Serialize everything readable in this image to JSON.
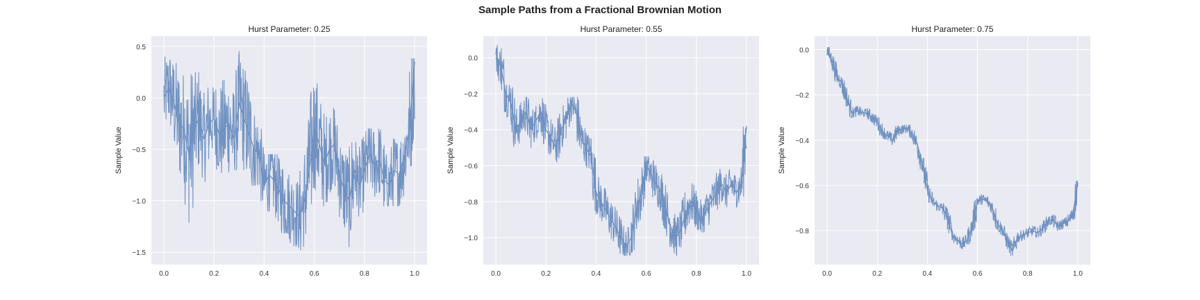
{
  "figure": {
    "suptitle": "Sample Paths from a Fractional Brownian Motion"
  },
  "colors": {
    "line": "#6c8ebf",
    "panel_bg": "#eaeaf2",
    "grid": "#ffffff"
  },
  "chart_data": [
    {
      "type": "line",
      "title": "Hurst Parameter: 0.25",
      "xlabel": "",
      "ylabel": "Sample Value",
      "xlim": [
        -0.05,
        1.05
      ],
      "ylim": [
        -1.62,
        0.6
      ],
      "xticks": [
        0.0,
        0.2,
        0.4,
        0.6,
        0.8,
        1.0
      ],
      "xtick_labels": [
        "0.0",
        "0.2",
        "0.4",
        "0.6",
        "0.8",
        "1.0"
      ],
      "yticks": [
        0.5,
        0.0,
        -0.5,
        -1.0,
        -1.5
      ],
      "ytick_labels": [
        "0.5",
        "0.0",
        "−0.5",
        "−1.0",
        "−1.5"
      ],
      "grid": true,
      "series": [
        {
          "x": [
            0.0,
            0.02,
            0.04,
            0.06,
            0.08,
            0.1,
            0.12,
            0.14,
            0.16,
            0.18,
            0.2,
            0.22,
            0.24,
            0.26,
            0.28,
            0.3,
            0.32,
            0.34,
            0.36,
            0.38,
            0.4,
            0.42,
            0.44,
            0.46,
            0.48,
            0.5,
            0.52,
            0.54,
            0.56,
            0.58,
            0.6,
            0.62,
            0.64,
            0.66,
            0.68,
            0.7,
            0.72,
            0.74,
            0.76,
            0.78,
            0.8,
            0.82,
            0.84,
            0.86,
            0.88,
            0.9,
            0.92,
            0.94,
            0.96,
            0.98,
            1.0
          ],
          "values": [
            0.0,
            0.1,
            -0.05,
            -0.25,
            -0.3,
            -0.55,
            -0.3,
            -0.2,
            -0.4,
            -0.25,
            -0.2,
            -0.35,
            -0.3,
            -0.25,
            -0.4,
            -0.05,
            -0.2,
            -0.35,
            -0.5,
            -0.55,
            -0.85,
            -0.75,
            -0.8,
            -0.9,
            -1.0,
            -1.05,
            -1.1,
            -1.15,
            -1.0,
            -0.7,
            -0.3,
            -0.45,
            -0.65,
            -0.5,
            -0.45,
            -0.75,
            -0.9,
            -1.0,
            -0.7,
            -0.85,
            -0.7,
            -0.55,
            -0.65,
            -0.6,
            -0.8,
            -0.85,
            -0.7,
            -0.75,
            -0.55,
            -0.3,
            0.35
          ],
          "min": [
            -0.1,
            -0.3,
            -0.4,
            -0.6,
            -0.75,
            -1.25,
            -0.8,
            -0.7,
            -0.85,
            -0.65,
            -0.55,
            -0.75,
            -0.8,
            -0.75,
            -0.7,
            -0.55,
            -0.7,
            -0.75,
            -0.85,
            -0.85,
            -1.1,
            -1.3,
            -1.3,
            -1.25,
            -1.4,
            -1.45,
            -1.5,
            -1.5,
            -1.4,
            -1.2,
            -0.65,
            -1.0,
            -1.05,
            -0.95,
            -1.0,
            -1.1,
            -1.3,
            -1.5,
            -1.1,
            -1.15,
            -1.0,
            -1.05,
            -1.0,
            -1.0,
            -1.05,
            -1.05,
            -1.0,
            -1.05,
            -0.95,
            -0.95,
            -0.1
          ],
          "max": [
            0.5,
            0.45,
            0.3,
            0.45,
            0.2,
            0.05,
            0.3,
            0.1,
            -0.05,
            0.1,
            0.1,
            0.15,
            0.25,
            0.25,
            0.1,
            0.45,
            0.4,
            0.25,
            0.0,
            -0.3,
            -0.55,
            -0.6,
            -0.55,
            -0.6,
            -0.7,
            -0.8,
            -0.75,
            -0.75,
            -0.55,
            -0.2,
            0.2,
            0.05,
            -0.2,
            -0.1,
            -0.2,
            -0.4,
            -0.5,
            -0.55,
            -0.4,
            -0.45,
            -0.35,
            -0.3,
            -0.35,
            -0.25,
            -0.45,
            -0.5,
            -0.3,
            -0.4,
            -0.25,
            -0.1,
            0.38
          ]
        }
      ]
    },
    {
      "type": "line",
      "title": "Hurst Parameter: 0.55",
      "xlabel": "",
      "ylabel": "Sample Value",
      "xlim": [
        -0.05,
        1.05
      ],
      "ylim": [
        -1.15,
        0.12
      ],
      "xticks": [
        0.0,
        0.2,
        0.4,
        0.6,
        0.8,
        1.0
      ],
      "xtick_labels": [
        "0.0",
        "0.2",
        "0.4",
        "0.6",
        "0.8",
        "1.0"
      ],
      "yticks": [
        0.0,
        -0.2,
        -0.4,
        -0.6,
        -0.8,
        -1.0
      ],
      "ytick_labels": [
        "0.0",
        "−0.2",
        "−0.4",
        "−0.6",
        "−0.8",
        "−1.0"
      ],
      "grid": true,
      "series": [
        {
          "x": [
            0.0,
            0.02,
            0.04,
            0.06,
            0.08,
            0.1,
            0.12,
            0.14,
            0.16,
            0.18,
            0.2,
            0.22,
            0.24,
            0.26,
            0.28,
            0.3,
            0.32,
            0.34,
            0.36,
            0.38,
            0.4,
            0.42,
            0.44,
            0.46,
            0.48,
            0.5,
            0.52,
            0.54,
            0.56,
            0.58,
            0.6,
            0.62,
            0.64,
            0.66,
            0.68,
            0.7,
            0.72,
            0.74,
            0.76,
            0.78,
            0.8,
            0.82,
            0.84,
            0.86,
            0.88,
            0.9,
            0.92,
            0.94,
            0.96,
            0.98,
            1.0
          ],
          "values": [
            0.0,
            -0.05,
            -0.2,
            -0.25,
            -0.4,
            -0.35,
            -0.3,
            -0.4,
            -0.35,
            -0.3,
            -0.4,
            -0.45,
            -0.5,
            -0.4,
            -0.35,
            -0.25,
            -0.3,
            -0.45,
            -0.5,
            -0.55,
            -0.75,
            -0.8,
            -0.85,
            -0.9,
            -0.95,
            -1.0,
            -1.05,
            -1.0,
            -0.85,
            -0.75,
            -0.6,
            -0.65,
            -0.7,
            -0.75,
            -0.85,
            -0.95,
            -1.0,
            -0.95,
            -0.85,
            -0.8,
            -0.85,
            -0.9,
            -0.85,
            -0.8,
            -0.75,
            -0.7,
            -0.75,
            -0.7,
            -0.75,
            -0.7,
            -0.38
          ],
          "min": [
            -0.05,
            -0.15,
            -0.3,
            -0.35,
            -0.5,
            -0.45,
            -0.4,
            -0.5,
            -0.45,
            -0.4,
            -0.5,
            -0.55,
            -0.58,
            -0.5,
            -0.45,
            -0.35,
            -0.4,
            -0.55,
            -0.6,
            -0.65,
            -0.85,
            -0.9,
            -0.95,
            -1.0,
            -1.05,
            -1.1,
            -1.1,
            -1.08,
            -0.95,
            -0.85,
            -0.7,
            -0.75,
            -0.8,
            -0.85,
            -0.95,
            -1.05,
            -1.1,
            -1.05,
            -0.95,
            -0.9,
            -0.95,
            -0.97,
            -0.93,
            -0.88,
            -0.85,
            -0.8,
            -0.83,
            -0.8,
            -0.83,
            -0.8,
            -0.42
          ],
          "max": [
            0.07,
            0.05,
            -0.1,
            -0.15,
            -0.3,
            -0.25,
            -0.22,
            -0.3,
            -0.27,
            -0.22,
            -0.3,
            -0.35,
            -0.42,
            -0.3,
            -0.25,
            -0.22,
            -0.22,
            -0.35,
            -0.42,
            -0.45,
            -0.65,
            -0.7,
            -0.75,
            -0.8,
            -0.85,
            -0.9,
            -0.95,
            -0.9,
            -0.75,
            -0.6,
            -0.55,
            -0.55,
            -0.6,
            -0.65,
            -0.75,
            -0.85,
            -0.9,
            -0.85,
            -0.75,
            -0.7,
            -0.75,
            -0.8,
            -0.75,
            -0.7,
            -0.65,
            -0.62,
            -0.65,
            -0.62,
            -0.65,
            -0.6,
            -0.36
          ]
        }
      ]
    },
    {
      "type": "line",
      "title": "Hurst Parameter: 0.75",
      "xlabel": "",
      "ylabel": "Sample Value",
      "xlim": [
        -0.05,
        1.05
      ],
      "ylim": [
        -0.95,
        0.06
      ],
      "xticks": [
        0.0,
        0.2,
        0.4,
        0.6,
        0.8,
        1.0
      ],
      "xtick_labels": [
        "0.0",
        "0.2",
        "0.4",
        "0.6",
        "0.8",
        "1.0"
      ],
      "yticks": [
        0.0,
        -0.2,
        -0.4,
        -0.6,
        -0.8
      ],
      "ytick_labels": [
        "0.0",
        "−0.2",
        "−0.4",
        "−0.6",
        "−0.8"
      ],
      "grid": true,
      "series": [
        {
          "x": [
            0.0,
            0.02,
            0.04,
            0.06,
            0.08,
            0.1,
            0.12,
            0.14,
            0.16,
            0.18,
            0.2,
            0.22,
            0.24,
            0.26,
            0.28,
            0.3,
            0.32,
            0.34,
            0.36,
            0.38,
            0.4,
            0.42,
            0.44,
            0.46,
            0.48,
            0.5,
            0.52,
            0.54,
            0.56,
            0.58,
            0.6,
            0.62,
            0.64,
            0.66,
            0.68,
            0.7,
            0.72,
            0.74,
            0.76,
            0.78,
            0.8,
            0.82,
            0.84,
            0.86,
            0.88,
            0.9,
            0.92,
            0.94,
            0.96,
            0.98,
            1.0
          ],
          "values": [
            0.0,
            -0.05,
            -0.12,
            -0.15,
            -0.22,
            -0.28,
            -0.27,
            -0.28,
            -0.28,
            -0.3,
            -0.32,
            -0.36,
            -0.38,
            -0.4,
            -0.36,
            -0.35,
            -0.35,
            -0.37,
            -0.42,
            -0.5,
            -0.62,
            -0.67,
            -0.69,
            -0.7,
            -0.74,
            -0.82,
            -0.84,
            -0.86,
            -0.84,
            -0.78,
            -0.67,
            -0.66,
            -0.67,
            -0.7,
            -0.77,
            -0.8,
            -0.85,
            -0.89,
            -0.83,
            -0.82,
            -0.81,
            -0.8,
            -0.81,
            -0.79,
            -0.76,
            -0.75,
            -0.78,
            -0.77,
            -0.76,
            -0.73,
            -0.59
          ],
          "min": [
            -0.02,
            -0.07,
            -0.14,
            -0.17,
            -0.25,
            -0.3,
            -0.29,
            -0.3,
            -0.3,
            -0.32,
            -0.34,
            -0.38,
            -0.4,
            -0.42,
            -0.38,
            -0.37,
            -0.37,
            -0.39,
            -0.44,
            -0.53,
            -0.64,
            -0.69,
            -0.71,
            -0.72,
            -0.77,
            -0.84,
            -0.86,
            -0.88,
            -0.86,
            -0.8,
            -0.69,
            -0.68,
            -0.69,
            -0.72,
            -0.79,
            -0.82,
            -0.87,
            -0.91,
            -0.85,
            -0.84,
            -0.83,
            -0.82,
            -0.83,
            -0.81,
            -0.78,
            -0.77,
            -0.8,
            -0.79,
            -0.78,
            -0.75,
            -0.61
          ],
          "max": [
            0.01,
            -0.03,
            -0.1,
            -0.13,
            -0.2,
            -0.26,
            -0.25,
            -0.26,
            -0.26,
            -0.28,
            -0.3,
            -0.34,
            -0.36,
            -0.38,
            -0.34,
            -0.33,
            -0.33,
            -0.35,
            -0.4,
            -0.48,
            -0.6,
            -0.65,
            -0.67,
            -0.68,
            -0.72,
            -0.8,
            -0.82,
            -0.84,
            -0.82,
            -0.76,
            -0.65,
            -0.64,
            -0.65,
            -0.68,
            -0.75,
            -0.78,
            -0.83,
            -0.87,
            -0.81,
            -0.8,
            -0.79,
            -0.78,
            -0.79,
            -0.77,
            -0.74,
            -0.73,
            -0.76,
            -0.75,
            -0.74,
            -0.71,
            -0.58
          ]
        }
      ]
    }
  ]
}
